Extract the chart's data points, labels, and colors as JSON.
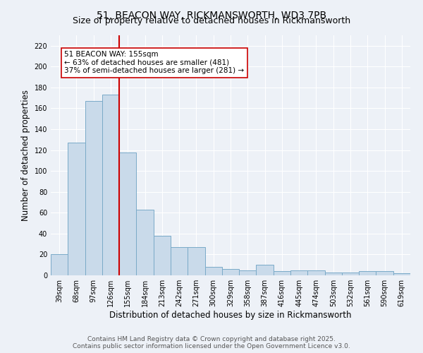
{
  "title_line1": "51, BEACON WAY, RICKMANSWORTH, WD3 7PB",
  "title_line2": "Size of property relative to detached houses in Rickmansworth",
  "xlabel": "Distribution of detached houses by size in Rickmansworth",
  "ylabel": "Number of detached properties",
  "bar_labels": [
    "39sqm",
    "68sqm",
    "97sqm",
    "126sqm",
    "155sqm",
    "184sqm",
    "213sqm",
    "242sqm",
    "271sqm",
    "300sqm",
    "329sqm",
    "358sqm",
    "387sqm",
    "416sqm",
    "445sqm",
    "474sqm",
    "503sqm",
    "532sqm",
    "561sqm",
    "590sqm",
    "619sqm"
  ],
  "bar_heights": [
    20,
    127,
    167,
    173,
    118,
    63,
    38,
    27,
    27,
    8,
    6,
    5,
    10,
    4,
    5,
    5,
    3,
    3,
    4,
    4,
    2
  ],
  "bar_color": "#c9daea",
  "bar_edgecolor": "#7aaac8",
  "vline_x_index": 4,
  "vline_color": "#cc0000",
  "annotation_text": "51 BEACON WAY: 155sqm\n← 63% of detached houses are smaller (481)\n37% of semi-detached houses are larger (281) →",
  "annotation_box_color": "#ffffff",
  "annotation_box_edgecolor": "#cc0000",
  "annotation_fontsize": 7.5,
  "ylim": [
    0,
    230
  ],
  "yticks": [
    0,
    20,
    40,
    60,
    80,
    100,
    120,
    140,
    160,
    180,
    200,
    220
  ],
  "background_color": "#edf1f7",
  "grid_color": "#ffffff",
  "footer_line1": "Contains HM Land Registry data © Crown copyright and database right 2025.",
  "footer_line2": "Contains public sector information licensed under the Open Government Licence v3.0.",
  "title_fontsize": 10,
  "subtitle_fontsize": 9,
  "axis_label_fontsize": 8.5,
  "tick_fontsize": 7,
  "footer_fontsize": 6.5
}
